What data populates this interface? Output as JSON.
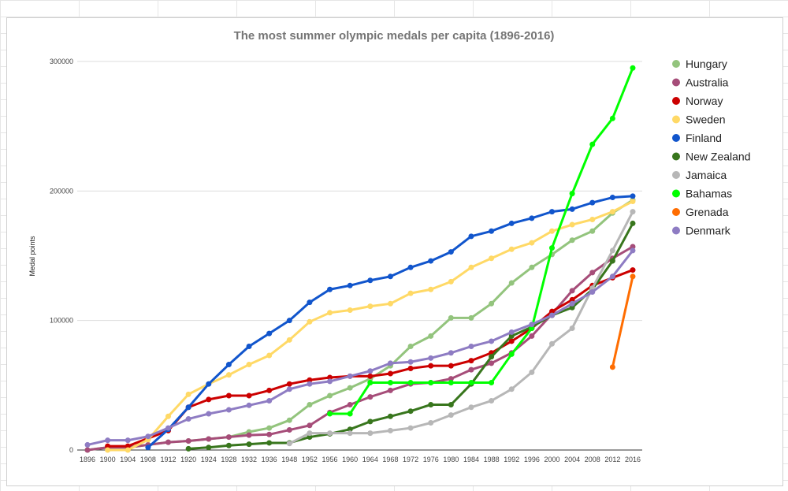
{
  "chart_data": {
    "type": "line",
    "title": "The most summer olympic medals per capita (1896-2016)",
    "xlabel": "",
    "ylabel": "Medal points",
    "ylim": [
      0,
      300000
    ],
    "yticks": [
      "0",
      "100000",
      "200000",
      "300000"
    ],
    "grid": true,
    "legend_position": "right",
    "categories": [
      "1896",
      "1900",
      "1904",
      "1908",
      "1912",
      "1920",
      "1924",
      "1928",
      "1932",
      "1936",
      "1948",
      "1952",
      "1956",
      "1960",
      "1964",
      "1968",
      "1972",
      "1976",
      "1980",
      "1984",
      "1988",
      "1992",
      "1996",
      "2000",
      "2004",
      "2008",
      "2012",
      "2016"
    ],
    "series": [
      {
        "name": "Hungary",
        "color": "#93c47d",
        "values": [
          0,
          2000,
          2000,
          4000,
          6000,
          7000,
          8500,
          10000,
          14000,
          17000,
          23000,
          35000,
          42000,
          48000,
          55000,
          65000,
          80000,
          88000,
          102000,
          102000,
          113000,
          129000,
          141000,
          151000,
          162000,
          169000,
          183000,
          193000
        ]
      },
      {
        "name": "Australia",
        "color": "#a64d79",
        "values": [
          0,
          2000,
          2000,
          4000,
          6000,
          7000,
          8500,
          10000,
          11500,
          12000,
          15500,
          19000,
          29000,
          35000,
          41000,
          46000,
          51000,
          52000,
          55000,
          62000,
          67000,
          75000,
          88000,
          105000,
          123000,
          137000,
          148000,
          157000
        ]
      },
      {
        "name": "Norway",
        "color": "#cc0000",
        "values": [
          null,
          3000,
          3000,
          9000,
          15000,
          33000,
          39000,
          42000,
          42000,
          46000,
          51000,
          54000,
          56000,
          57000,
          57000,
          59000,
          63000,
          65000,
          65000,
          69000,
          75000,
          84000,
          94000,
          107000,
          116000,
          127000,
          133000,
          139000
        ]
      },
      {
        "name": "Sweden",
        "color": "#ffd966",
        "values": [
          null,
          0,
          0,
          8000,
          26000,
          43000,
          51000,
          58000,
          66000,
          73000,
          85000,
          99000,
          106000,
          108000,
          111000,
          113000,
          121000,
          124000,
          130000,
          141000,
          148000,
          155000,
          160000,
          169000,
          174000,
          178000,
          184000,
          192000
        ]
      },
      {
        "name": "Finland",
        "color": "#1155cc",
        "values": [
          null,
          null,
          null,
          2000,
          16000,
          33000,
          51000,
          66000,
          80000,
          90000,
          100000,
          114000,
          124000,
          127000,
          131000,
          134000,
          141000,
          146000,
          153000,
          165000,
          169000,
          175000,
          179000,
          184000,
          186000,
          191000,
          195000,
          196000
        ]
      },
      {
        "name": "New Zealand",
        "color": "#38761d",
        "values": [
          null,
          null,
          null,
          null,
          null,
          1000,
          2000,
          3500,
          4500,
          5500,
          5500,
          10000,
          12500,
          16000,
          22000,
          26000,
          30000,
          35000,
          35000,
          51000,
          72000,
          88000,
          95000,
          104000,
          110000,
          124000,
          146000,
          175000
        ]
      },
      {
        "name": "Jamaica",
        "color": "#b7b7b7",
        "values": [
          null,
          null,
          null,
          null,
          null,
          null,
          null,
          null,
          null,
          null,
          5000,
          13000,
          13000,
          13000,
          13000,
          15000,
          17000,
          21000,
          27000,
          33000,
          38000,
          47000,
          60000,
          82000,
          94000,
          125000,
          154000,
          184000
        ]
      },
      {
        "name": "Bahamas",
        "color": "#00ff00",
        "values": [
          null,
          null,
          null,
          null,
          null,
          null,
          null,
          null,
          null,
          null,
          null,
          null,
          28000,
          28000,
          52000,
          52000,
          52000,
          52000,
          52000,
          52000,
          52000,
          74000,
          94000,
          156000,
          198000,
          236000,
          256000,
          295000
        ]
      },
      {
        "name": "Grenada",
        "color": "#ff6d01",
        "values": [
          null,
          null,
          null,
          null,
          null,
          null,
          null,
          null,
          null,
          null,
          null,
          null,
          null,
          null,
          null,
          null,
          null,
          null,
          null,
          null,
          null,
          null,
          null,
          null,
          null,
          null,
          64000,
          134000
        ]
      },
      {
        "name": "Denmark",
        "color": "#8e7cc3",
        "values": [
          4000,
          7500,
          7500,
          10500,
          17000,
          24000,
          28000,
          31000,
          34500,
          38000,
          47000,
          51000,
          53000,
          57000,
          61000,
          67000,
          68000,
          71000,
          75000,
          80000,
          84000,
          91000,
          97000,
          104000,
          113000,
          122000,
          134000,
          154000
        ]
      }
    ]
  }
}
